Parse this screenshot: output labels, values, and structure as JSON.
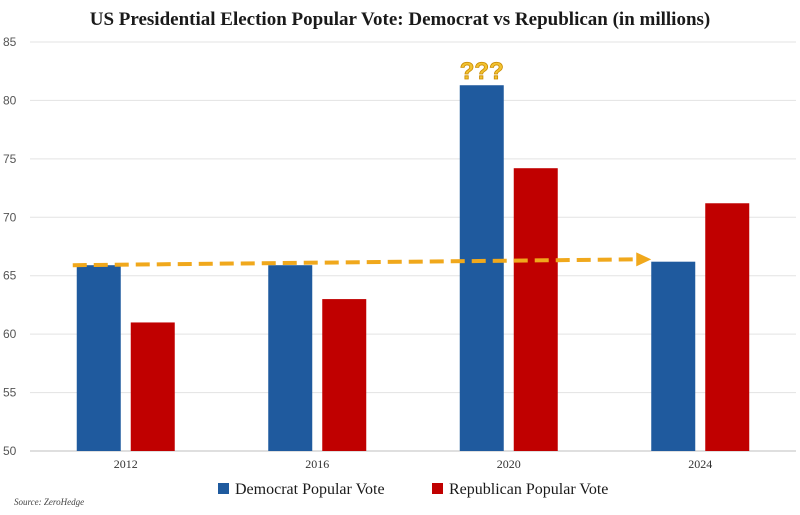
{
  "chart_data": {
    "type": "bar",
    "title": "US Presidential Election Popular Vote: Democrat vs Republican (in millions)",
    "categories": [
      "2012",
      "2016",
      "2020",
      "2024"
    ],
    "series": [
      {
        "name": "Democrat Popular Vote",
        "color": "#1f5a9e",
        "values": [
          65.9,
          65.9,
          81.3,
          66.2
        ]
      },
      {
        "name": "Republican Popular Vote",
        "color": "#c00000",
        "values": [
          61.0,
          63.0,
          74.2,
          71.2
        ]
      }
    ],
    "ylim": [
      50,
      85
    ],
    "yticks": [
      50,
      55,
      60,
      65,
      70,
      75,
      80,
      85
    ],
    "xlabel": "",
    "ylabel": "",
    "grid": "horizontal",
    "legend": "bottom-center",
    "annotations": [
      {
        "text": "???",
        "category": "2020",
        "series": "Democrat Popular Vote",
        "color": "#f2c230"
      }
    ],
    "trend_arrow": {
      "from_value": 65.9,
      "to_value": 66.4,
      "from_category": "2012",
      "to_category": "2024",
      "color": "#f0a81c",
      "style": "dashed"
    },
    "source": "Source: ZeroHedge"
  }
}
